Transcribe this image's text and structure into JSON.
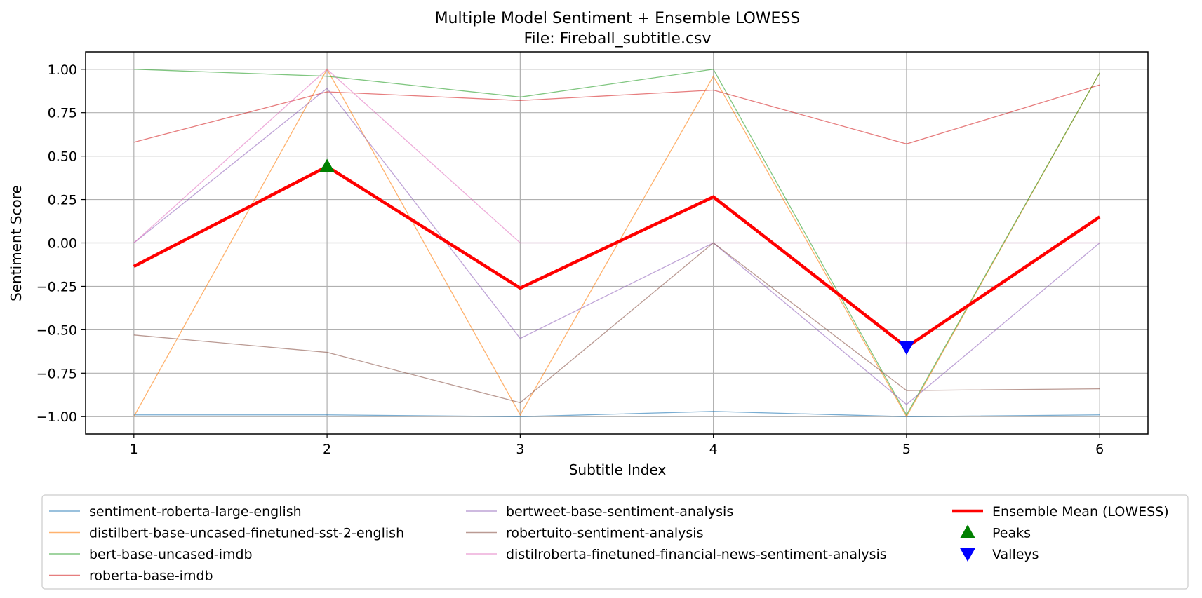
{
  "chart_data": {
    "type": "line",
    "title": "Multiple Model Sentiment + Ensemble LOWESS",
    "subtitle": "File: Fireball_subtitle.csv",
    "xlabel": "Subtitle Index",
    "ylabel": "Sentiment Score",
    "x": [
      1,
      2,
      3,
      4,
      5,
      6
    ],
    "xlim": [
      0.75,
      6.25
    ],
    "ylim": [
      -1.1,
      1.1
    ],
    "xticks": [
      1,
      2,
      3,
      4,
      5,
      6
    ],
    "yticks": [
      1.0,
      0.75,
      0.5,
      0.25,
      0.0,
      -0.25,
      -0.5,
      -0.75,
      -1.0
    ],
    "ytick_labels": [
      "1.00",
      "0.75",
      "0.50",
      "0.25",
      "0.00",
      "−0.25",
      "−0.50",
      "−0.75",
      "−1.00"
    ],
    "grid": true,
    "legend_position": "bottom",
    "series": [
      {
        "name": "sentiment-roberta-large-english",
        "color": "#1f77b4",
        "values": [
          -0.99,
          -0.99,
          -1.0,
          -0.97,
          -1.0,
          -0.99
        ]
      },
      {
        "name": "distilbert-base-uncased-finetuned-sst-2-english",
        "color": "#ff7f0e",
        "values": [
          -1.0,
          1.0,
          -0.99,
          0.96,
          -1.0,
          0.98
        ]
      },
      {
        "name": "bert-base-uncased-imdb",
        "color": "#2ca02c",
        "values": [
          1.0,
          0.96,
          0.84,
          1.0,
          -0.99,
          0.98
        ]
      },
      {
        "name": "roberta-base-imdb",
        "color": "#d62728",
        "values": [
          0.58,
          0.87,
          0.82,
          0.88,
          0.57,
          0.91
        ]
      },
      {
        "name": "bertweet-base-sentiment-analysis",
        "color": "#9467bd",
        "values": [
          0.0,
          0.89,
          -0.55,
          0.0,
          -0.93,
          0.0
        ]
      },
      {
        "name": "robertuito-sentiment-analysis",
        "color": "#8c564b",
        "values": [
          -0.53,
          -0.63,
          -0.92,
          0.0,
          -0.85,
          -0.84
        ]
      },
      {
        "name": "distilroberta-finetuned-financial-news-sentiment-analysis",
        "color": "#e377c2",
        "values": [
          0.0,
          1.0,
          0.0,
          0.0,
          0.0,
          0.0
        ]
      }
    ],
    "ensemble": {
      "name": "Ensemble Mean (LOWESS)",
      "color": "#ff0000",
      "values": [
        -0.135,
        0.44,
        -0.26,
        0.265,
        -0.6,
        0.15
      ]
    },
    "peaks": {
      "name": "Peaks",
      "color": "#008000",
      "points": [
        {
          "x": 2,
          "y": 0.44
        }
      ]
    },
    "valleys": {
      "name": "Valleys",
      "color": "#0000ff",
      "points": [
        {
          "x": 5,
          "y": -0.6
        }
      ]
    }
  }
}
